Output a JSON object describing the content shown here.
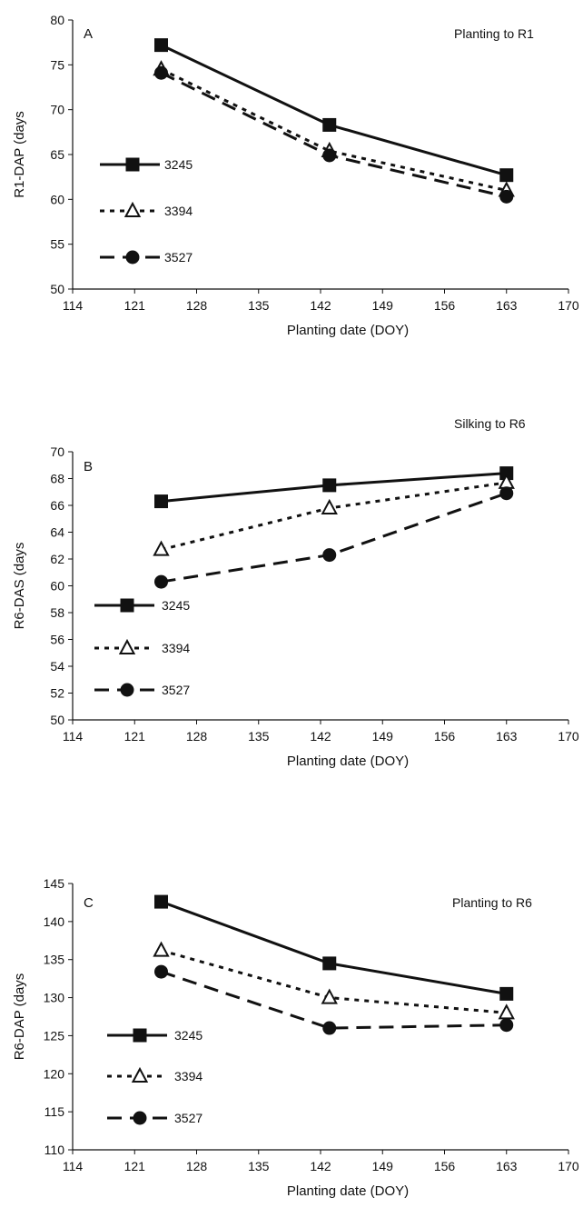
{
  "chart_data": [
    {
      "type": "line",
      "panel": "A",
      "title": "Planting to R1",
      "xlabel": "Planting date (DOY)",
      "ylabel": "R1-DAP (days",
      "xlim": [
        114,
        170
      ],
      "ylim": [
        50,
        80
      ],
      "xticks": [
        114,
        121,
        128,
        135,
        142,
        149,
        156,
        163,
        170
      ],
      "yticks": [
        50,
        55,
        60,
        65,
        70,
        75,
        80
      ],
      "x": [
        124,
        143,
        163
      ],
      "series": [
        {
          "name": "3245",
          "values": [
            77.2,
            68.3,
            62.7
          ],
          "marker": "square",
          "dash": "solid"
        },
        {
          "name": "3394",
          "values": [
            74.5,
            65.4,
            61.0
          ],
          "marker": "triangle",
          "dash": "dotted"
        },
        {
          "name": "3527",
          "values": [
            74.1,
            64.9,
            60.3
          ],
          "marker": "circle",
          "dash": "dashed"
        }
      ],
      "legend": "left-inside"
    },
    {
      "type": "line",
      "panel": "B",
      "title": "Silking to R6",
      "xlabel": "Planting date (DOY)",
      "ylabel": "R6-DAS (days",
      "xlim": [
        114,
        170
      ],
      "ylim": [
        50,
        70
      ],
      "xticks": [
        114,
        121,
        128,
        135,
        142,
        149,
        156,
        163,
        170
      ],
      "yticks": [
        50,
        52,
        54,
        56,
        58,
        60,
        62,
        64,
        66,
        68,
        70
      ],
      "x": [
        124,
        143,
        163
      ],
      "series": [
        {
          "name": "3245",
          "values": [
            66.3,
            67.5,
            68.4
          ],
          "marker": "square",
          "dash": "solid"
        },
        {
          "name": "3394",
          "values": [
            62.7,
            65.8,
            67.7
          ],
          "marker": "triangle",
          "dash": "dotted"
        },
        {
          "name": "3527",
          "values": [
            60.3,
            62.3,
            66.9
          ],
          "marker": "circle",
          "dash": "dashed"
        }
      ],
      "legend": "left-inside"
    },
    {
      "type": "line",
      "panel": "C",
      "title": "Planting to R6",
      "xlabel": "Planting date (DOY)",
      "ylabel": "R6-DAP (days",
      "xlim": [
        114,
        170
      ],
      "ylim": [
        110,
        145
      ],
      "xticks": [
        114,
        121,
        128,
        135,
        142,
        149,
        156,
        163,
        170
      ],
      "yticks": [
        110,
        115,
        120,
        125,
        130,
        135,
        140,
        145
      ],
      "x": [
        124,
        143,
        163
      ],
      "series": [
        {
          "name": "3245",
          "values": [
            142.6,
            134.5,
            130.5
          ],
          "marker": "square",
          "dash": "solid"
        },
        {
          "name": "3394",
          "values": [
            136.2,
            130.0,
            128.0
          ],
          "marker": "triangle",
          "dash": "dotted"
        },
        {
          "name": "3527",
          "values": [
            133.4,
            126.0,
            126.4
          ],
          "marker": "circle",
          "dash": "dashed"
        }
      ],
      "legend": "left-inside"
    }
  ]
}
